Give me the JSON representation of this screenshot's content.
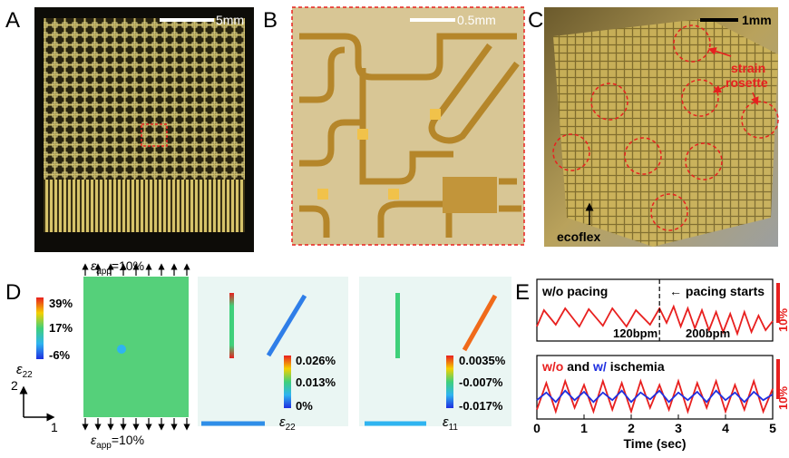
{
  "panel_letters": [
    "A",
    "B",
    "C",
    "D",
    "E"
  ],
  "panel_a": {
    "scale_bar": "5mm"
  },
  "panel_b": {
    "scale_bar": "0.5mm"
  },
  "panel_c": {
    "scale_bar": "1mm",
    "rosette_lines": [
      "strain",
      "rosette"
    ],
    "substrate": "ecoflex"
  },
  "panel_d": {
    "applied_strain": {
      "symbol": "ε",
      "sub": "app",
      "rest": "=10%"
    },
    "map_colorbar": {
      "ticks": [
        "39%",
        "17%",
        "-6%"
      ],
      "symbol": "ε",
      "sub": "22"
    },
    "axis_labels": [
      "2",
      "1"
    ],
    "middle_colorbar": {
      "ticks": [
        "0.026%",
        "0.013%",
        "0%"
      ],
      "symbol": "ε",
      "sub": "22"
    },
    "right_colorbar": {
      "ticks": [
        "0.0035%",
        "-0.007%",
        "-0.017%"
      ],
      "symbol": "ε",
      "sub": "11"
    }
  },
  "chart_data": [
    {
      "type": "line",
      "annotations": [
        "w/o pacing",
        "← pacing starts",
        "120bpm",
        "200bpm"
      ],
      "pacing_start": 2.6,
      "scale_bar": "10%",
      "x": [
        0,
        0.15,
        0.4,
        0.6,
        0.9,
        1.1,
        1.4,
        1.6,
        1.9,
        2.1,
        2.4,
        2.6,
        2.75,
        2.9,
        3.05,
        3.2,
        3.35,
        3.5,
        3.65,
        3.8,
        3.95,
        4.1,
        4.25,
        4.4,
        4.55,
        4.7,
        4.85,
        5.0
      ],
      "xlim": [
        0,
        5
      ],
      "ylim": [
        0,
        1
      ],
      "series": [
        {
          "color": "#e8201f",
          "values": [
            0.3,
            0.75,
            0.35,
            0.8,
            0.3,
            0.78,
            0.32,
            0.8,
            0.3,
            0.75,
            0.35,
            0.8,
            0.4,
            0.85,
            0.3,
            0.8,
            0.25,
            0.75,
            0.2,
            0.7,
            0.15,
            0.65,
            0.1,
            0.7,
            0.15,
            0.6,
            0.2,
            0.45
          ]
        }
      ]
    },
    {
      "type": "line",
      "title_words": [
        "and",
        "ischemia"
      ],
      "scale_bar": "10%",
      "x": [
        0,
        0.2,
        0.4,
        0.6,
        0.8,
        1.0,
        1.2,
        1.4,
        1.6,
        1.8,
        2.0,
        2.2,
        2.4,
        2.6,
        2.8,
        3.0,
        3.2,
        3.4,
        3.6,
        3.8,
        4.0,
        4.2,
        4.4,
        4.6,
        4.8,
        5.0
      ],
      "xlim": [
        0,
        5
      ],
      "ylim": [
        0,
        1
      ],
      "xticks": [
        0,
        1,
        2,
        3,
        4,
        5
      ],
      "xlabel": "Time (sec)",
      "series": [
        {
          "name": "w/o",
          "color": "#e8201f",
          "values": [
            0.15,
            0.85,
            0.1,
            0.9,
            0.2,
            0.8,
            0.1,
            0.9,
            0.15,
            0.85,
            0.1,
            0.9,
            0.2,
            0.8,
            0.15,
            0.9,
            0.1,
            0.85,
            0.2,
            0.9,
            0.1,
            0.8,
            0.15,
            0.9,
            0.1,
            0.7
          ]
        },
        {
          "name": "w/",
          "color": "#1f2fe0",
          "values": [
            0.4,
            0.6,
            0.35,
            0.65,
            0.4,
            0.62,
            0.35,
            0.6,
            0.4,
            0.65,
            0.35,
            0.6,
            0.42,
            0.65,
            0.35,
            0.6,
            0.4,
            0.62,
            0.35,
            0.65,
            0.4,
            0.6,
            0.35,
            0.62,
            0.4,
            0.55
          ]
        }
      ]
    }
  ]
}
